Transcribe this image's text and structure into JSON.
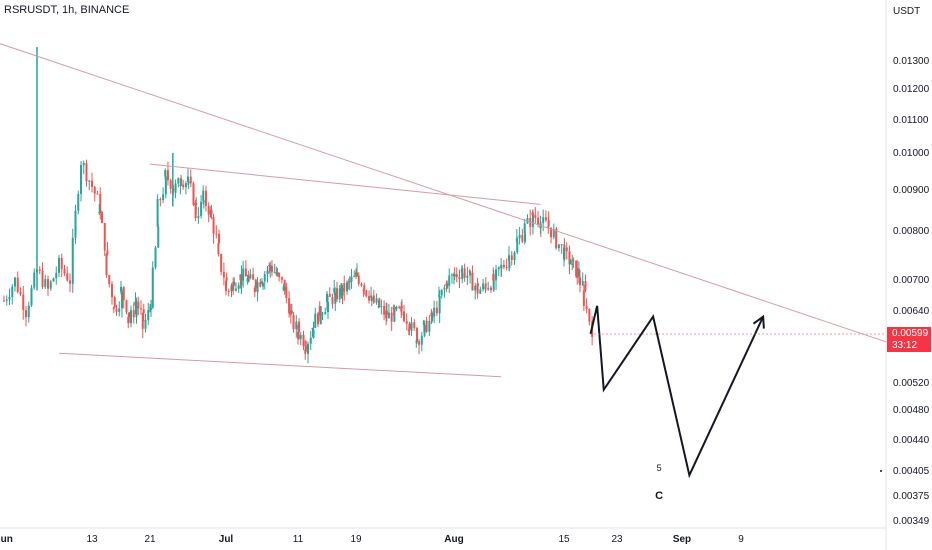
{
  "chart_data": {
    "type": "candlestick",
    "title": "RSRUSDT, 1h, BINANCE",
    "y_unit": "USDT",
    "y_ticks": [
      "0.01300",
      "0.01200",
      "0.01100",
      "0.01000",
      "0.00900",
      "0.00800",
      "0.00700",
      "0.00640",
      "0.00599",
      "0.00520",
      "0.00480",
      "0.00440",
      "0.00405",
      "0.00375",
      "0.00349"
    ],
    "y_tick_values": [
      0.013,
      0.012,
      0.011,
      0.01,
      0.009,
      0.008,
      0.007,
      0.0064,
      0.00599,
      0.0052,
      0.0048,
      0.0044,
      0.00405,
      0.00375,
      0.00349
    ],
    "x_ticks": [
      "Jun",
      "13",
      "21",
      "Jul",
      "11",
      "19",
      "Aug",
      "15",
      "23",
      "Sep",
      "9"
    ],
    "x_tick_dates": [
      "2022-06-05",
      "2022-06-13",
      "2022-06-21",
      "2022-07-01",
      "2022-07-11",
      "2022-07-19",
      "2022-08-01",
      "2022-08-15",
      "2022-08-23",
      "2022-09-01",
      "2022-09-09"
    ],
    "bold_ticks": [
      "Jun",
      "Jul",
      "Aug",
      "Sep"
    ],
    "current_price": "0.00599",
    "countdown": "33:12",
    "colors": {
      "up": "#26a69a",
      "down": "#ef5350",
      "trendline": "#d59aa6",
      "projection": "#131722",
      "badge": "#f23645"
    },
    "price_path": [
      [
        "2022-06-05",
        0.0066
      ],
      [
        "2022-06-06",
        0.007
      ],
      [
        "2022-06-07",
        0.0064
      ],
      [
        "2022-06-08",
        0.0072
      ],
      [
        "2022-06-09",
        0.0068
      ],
      [
        "2022-06-10",
        0.0073
      ],
      [
        "2022-06-11",
        0.007
      ],
      [
        "2022-06-12",
        0.0098
      ],
      [
        "2022-06-13",
        0.0091
      ],
      [
        "2022-06-14",
        0.0084
      ],
      [
        "2022-06-15",
        0.0071
      ],
      [
        "2022-06-16",
        0.0064
      ],
      [
        "2022-06-17",
        0.0068
      ],
      [
        "2022-06-18",
        0.0062
      ],
      [
        "2022-06-19",
        0.0066
      ],
      [
        "2022-06-20",
        0.0061
      ],
      [
        "2022-06-21",
        0.0066
      ],
      [
        "2022-06-22",
        0.0086
      ],
      [
        "2022-06-23",
        0.0094
      ],
      [
        "2022-06-24",
        0.009
      ],
      [
        "2022-06-25",
        0.0093
      ],
      [
        "2022-06-26",
        0.0092
      ],
      [
        "2022-06-27",
        0.0084
      ],
      [
        "2022-06-28",
        0.0088
      ],
      [
        "2022-06-29",
        0.0083
      ],
      [
        "2022-06-30",
        0.0074
      ],
      [
        "2022-07-01",
        0.0068
      ],
      [
        "2022-07-03",
        0.0071
      ],
      [
        "2022-07-05",
        0.0069
      ],
      [
        "2022-07-07",
        0.0073
      ],
      [
        "2022-07-09",
        0.0068
      ],
      [
        "2022-07-10",
        0.0062
      ],
      [
        "2022-07-11",
        0.006
      ],
      [
        "2022-07-12",
        0.0058
      ],
      [
        "2022-07-13",
        0.0062
      ],
      [
        "2022-07-15",
        0.0066
      ],
      [
        "2022-07-17",
        0.0068
      ],
      [
        "2022-07-19",
        0.0071
      ],
      [
        "2022-07-21",
        0.0066
      ],
      [
        "2022-07-23",
        0.0063
      ],
      [
        "2022-07-25",
        0.0064
      ],
      [
        "2022-07-27",
        0.0059
      ],
      [
        "2022-07-29",
        0.0063
      ],
      [
        "2022-07-31",
        0.007
      ],
      [
        "2022-08-02",
        0.0072
      ],
      [
        "2022-08-04",
        0.0068
      ],
      [
        "2022-08-06",
        0.007
      ],
      [
        "2022-08-08",
        0.0075
      ],
      [
        "2022-08-10",
        0.0081
      ],
      [
        "2022-08-11",
        0.0084
      ],
      [
        "2022-08-12",
        0.0082
      ],
      [
        "2022-08-13",
        0.0081
      ],
      [
        "2022-08-15",
        0.0075
      ],
      [
        "2022-08-17",
        0.0071
      ],
      [
        "2022-08-18",
        0.0066
      ],
      [
        "2022-08-19",
        0.0059
      ]
    ],
    "wick_events": [
      [
        "2022-06-08",
        0.0135,
        0.0068
      ],
      [
        "2022-06-24",
        0.01,
        0.0086
      ]
    ],
    "trendlines": [
      {
        "name": "upper-resistance",
        "from": [
          "2022-06-01",
          0.0141
        ],
        "to": [
          "2022-09-29",
          0.00585
        ]
      },
      {
        "name": "channel-top",
        "from": [
          "2022-06-21",
          0.0097
        ],
        "to": [
          "2022-08-12",
          0.00865
        ]
      },
      {
        "name": "channel-bottom",
        "from": [
          "2022-06-10",
          0.00568
        ],
        "to": [
          "2022-08-07",
          0.0053
        ]
      }
    ],
    "projection": [
      [
        "2022-08-19",
        0.00599
      ],
      [
        "2022-08-20",
        0.0065
      ],
      [
        "2022-08-21",
        0.0051
      ],
      [
        "2022-08-28",
        0.0063
      ],
      [
        "2022-09-02",
        0.004
      ],
      [
        "2022-09-12",
        0.0063
      ]
    ],
    "annotations": [
      {
        "text": "5",
        "date": "2022-08-28",
        "price": 0.00405
      },
      {
        "text": "C",
        "date": "2022-08-28",
        "price": 0.00372
      }
    ]
  }
}
